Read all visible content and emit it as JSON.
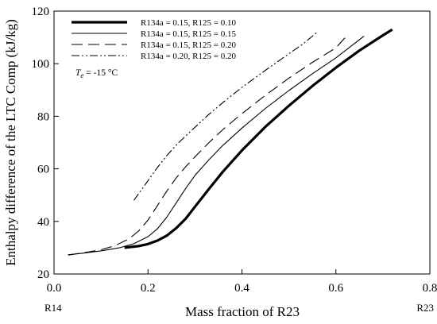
{
  "chart_data": {
    "type": "line",
    "xlabel": "Mass fraction of R23",
    "ylabel": "Enthalpy difference of the LTC Comp (kJ/kg)",
    "xlim": [
      0.0,
      0.8
    ],
    "ylim": [
      20,
      120
    ],
    "x_ticks": [
      0.0,
      0.2,
      0.4,
      0.6,
      0.8
    ],
    "x_tick_labels": [
      "0.0",
      "0.2",
      "0.4",
      "0.6",
      "0.8"
    ],
    "y_ticks": [
      20,
      40,
      60,
      80,
      100,
      120
    ],
    "y_tick_labels": [
      "20",
      "40",
      "60",
      "80",
      "100",
      "120"
    ],
    "x_end_labels": {
      "left": "R14",
      "right": "R23"
    },
    "grid": false,
    "legend_position": "top-left",
    "annotation": {
      "symbol": "T",
      "subscript": "e",
      "text": " = -15 °C"
    },
    "series": [
      {
        "name": "R134a = 0.15, R125 = 0.10",
        "style": "thick-solid",
        "x": [
          0.15,
          0.18,
          0.2,
          0.22,
          0.24,
          0.26,
          0.28,
          0.3,
          0.33,
          0.36,
          0.4,
          0.45,
          0.5,
          0.55,
          0.6,
          0.65,
          0.7,
          0.72
        ],
        "y": [
          30.0,
          30.6,
          31.4,
          32.7,
          34.6,
          37.4,
          41.0,
          45.6,
          52.4,
          59.0,
          67.0,
          76.0,
          84.0,
          91.5,
          98.5,
          105.0,
          110.8,
          113.0
        ]
      },
      {
        "name": "R134a = 0.15, R125 = 0.15",
        "style": "thin-solid",
        "x": [
          0.03,
          0.06,
          0.1,
          0.14,
          0.17,
          0.2,
          0.22,
          0.24,
          0.26,
          0.28,
          0.3,
          0.33,
          0.36,
          0.4,
          0.45,
          0.5,
          0.55,
          0.6,
          0.66
        ],
        "y": [
          27.3,
          27.9,
          28.8,
          30.0,
          31.5,
          34.2,
          37.2,
          41.6,
          47.0,
          52.5,
          57.5,
          63.5,
          69.0,
          75.5,
          83.0,
          89.8,
          96.2,
          102.2,
          110.5
        ]
      },
      {
        "name": "R134a = 0.15, R125 = 0.20",
        "style": "dashed",
        "x": [
          0.03,
          0.06,
          0.1,
          0.13,
          0.16,
          0.18,
          0.2,
          0.22,
          0.24,
          0.26,
          0.28,
          0.3,
          0.33,
          0.36,
          0.4,
          0.45,
          0.5,
          0.55,
          0.6,
          0.62
        ],
        "y": [
          27.2,
          28.0,
          29.2,
          30.8,
          33.4,
          36.3,
          40.5,
          46.0,
          51.5,
          56.5,
          60.8,
          64.6,
          70.0,
          75.0,
          81.0,
          88.0,
          94.5,
          100.5,
          106.0,
          110.0
        ]
      },
      {
        "name": "R134a = 0.20, R125 = 0.20",
        "style": "dash-dot-dot",
        "x": [
          0.17,
          0.18,
          0.2,
          0.22,
          0.24,
          0.26,
          0.28,
          0.3,
          0.33,
          0.36,
          0.4,
          0.45,
          0.5,
          0.53,
          0.56
        ],
        "y": [
          48.0,
          50.5,
          55.5,
          60.5,
          65.0,
          69.0,
          72.5,
          75.8,
          80.8,
          85.3,
          91.0,
          97.5,
          103.8,
          107.5,
          112.0
        ]
      }
    ]
  }
}
